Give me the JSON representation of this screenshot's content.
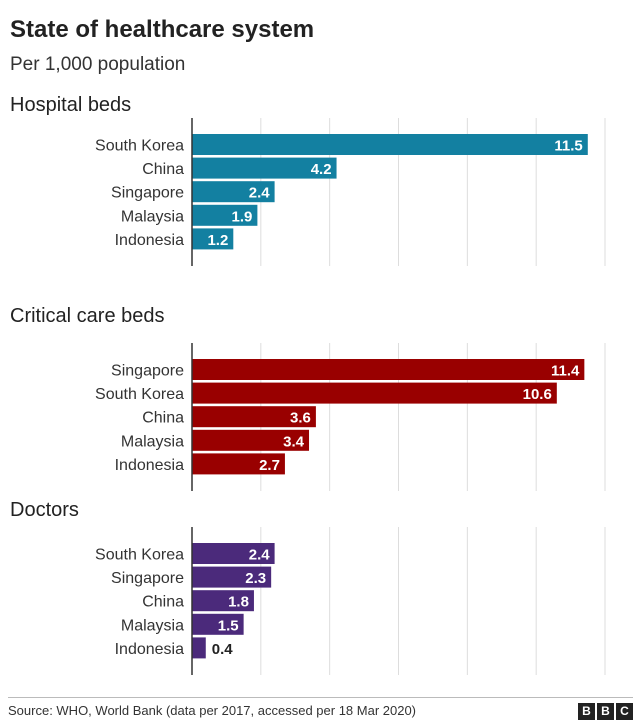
{
  "title": "State of healthcare system",
  "subtitle": "Per 1,000 population",
  "source": "Source: WHO, World Bank (data per 2017, accessed per 18 Mar 2020)",
  "logo": [
    "B",
    "B",
    "C"
  ],
  "chart_data": [
    {
      "type": "bar",
      "orientation": "horizontal",
      "title": "Hospital beds",
      "categories": [
        "South Korea",
        "China",
        "Singapore",
        "Malaysia",
        "Indonesia"
      ],
      "values": [
        11.5,
        4.2,
        2.4,
        1.9,
        1.2
      ],
      "color": "#1380A1",
      "xlim": [
        0,
        12
      ],
      "grid": true
    },
    {
      "type": "bar",
      "orientation": "horizontal",
      "title": "Critical care beds",
      "categories": [
        "Singapore",
        "South Korea",
        "China",
        "Malaysia",
        "Indonesia"
      ],
      "values": [
        11.4,
        10.6,
        3.6,
        3.4,
        2.7
      ],
      "color": "#990000",
      "xlim": [
        0,
        12
      ],
      "grid": true
    },
    {
      "type": "bar",
      "orientation": "horizontal",
      "title": "Doctors",
      "categories": [
        "South Korea",
        "Singapore",
        "China",
        "Malaysia",
        "Indonesia"
      ],
      "values": [
        2.4,
        2.3,
        1.8,
        1.5,
        0.4
      ],
      "color": "#4B2A7B",
      "xlim": [
        0,
        12
      ],
      "grid": true
    }
  ]
}
